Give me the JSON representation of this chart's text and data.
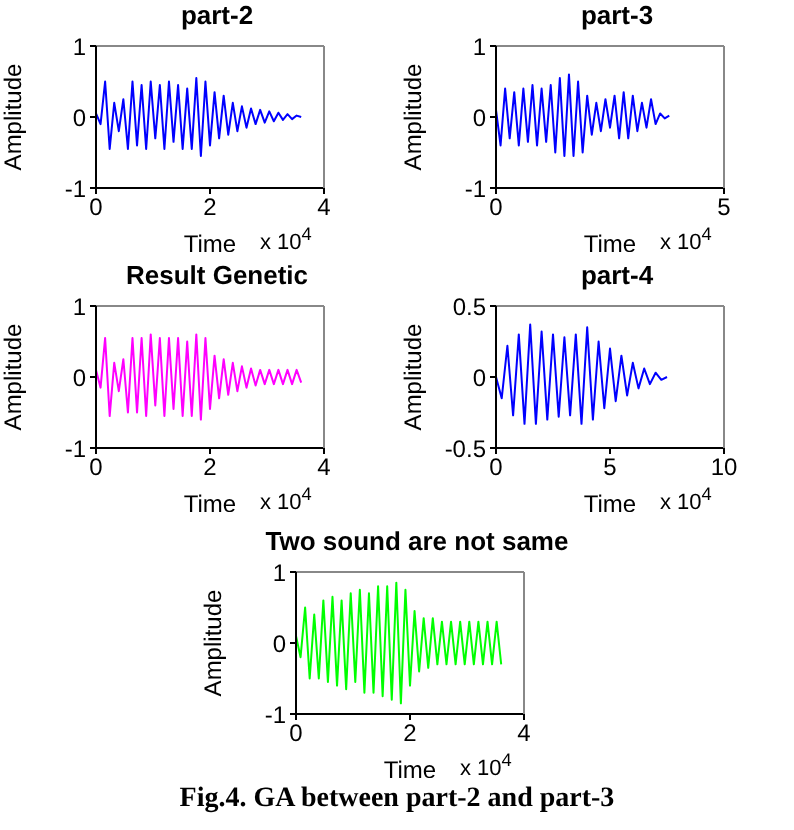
{
  "chart_data": [
    {
      "type": "line",
      "title": "part-2",
      "xlabel": "Time",
      "ylabel": "Amplitude",
      "annotations": [
        "x 10$^{4}$"
      ],
      "xlim": [
        0,
        4
      ],
      "xticks": [
        0,
        2,
        4
      ],
      "ylim": [
        -1,
        1
      ],
      "yticks": [
        -1,
        0,
        1
      ],
      "series": [
        {
          "color": "#0000ff",
          "x": [
            0,
            0.08,
            0.16,
            0.24,
            0.32,
            0.4,
            0.48,
            0.56,
            0.64,
            0.72,
            0.8,
            0.88,
            0.96,
            1.04,
            1.12,
            1.2,
            1.28,
            1.36,
            1.44,
            1.52,
            1.6,
            1.68,
            1.76,
            1.84,
            1.92,
            2,
            2.08,
            2.16,
            2.24,
            2.32,
            2.4,
            2.48,
            2.56,
            2.64,
            2.72,
            2.8,
            2.88,
            2.96,
            3.04,
            3.12,
            3.2,
            3.28,
            3.36,
            3.44,
            3.52,
            3.6
          ],
          "values": [
            0.05,
            -0.1,
            0.5,
            -0.45,
            0.2,
            -0.2,
            0.25,
            -0.45,
            0.5,
            -0.4,
            0.45,
            -0.45,
            0.5,
            -0.3,
            0.45,
            -0.45,
            0.5,
            -0.35,
            0.45,
            -0.45,
            0.4,
            -0.45,
            0.55,
            -0.55,
            0.5,
            -0.4,
            0.35,
            -0.3,
            0.3,
            -0.25,
            0.2,
            -0.2,
            0.15,
            -0.15,
            0.12,
            -0.1,
            0.1,
            -0.08,
            0.08,
            -0.06,
            0.06,
            -0.04,
            0.04,
            -0.03,
            0.02,
            0
          ]
        }
      ]
    },
    {
      "type": "line",
      "title": "part-3",
      "xlabel": "Time",
      "ylabel": "Amplitude",
      "annotations": [
        "x 10$^{4}$"
      ],
      "xlim": [
        0,
        5
      ],
      "xticks": [
        0,
        5
      ],
      "ylim": [
        -1,
        1
      ],
      "yticks": [
        -1,
        0,
        1
      ],
      "series": [
        {
          "color": "#0000ff",
          "x": [
            0,
            0.1,
            0.2,
            0.3,
            0.4,
            0.5,
            0.6,
            0.7,
            0.8,
            0.9,
            1,
            1.1,
            1.2,
            1.3,
            1.4,
            1.5,
            1.6,
            1.7,
            1.8,
            1.9,
            2,
            2.1,
            2.2,
            2.3,
            2.4,
            2.5,
            2.6,
            2.7,
            2.8,
            2.9,
            3,
            3.1,
            3.2,
            3.3,
            3.4,
            3.5,
            3.6,
            3.7,
            3.8
          ],
          "values": [
            0.1,
            -0.4,
            0.4,
            -0.3,
            0.35,
            -0.4,
            0.4,
            -0.35,
            0.45,
            -0.4,
            0.4,
            -0.35,
            0.45,
            -0.5,
            0.55,
            -0.55,
            0.6,
            -0.55,
            0.5,
            -0.5,
            0.3,
            -0.25,
            0.2,
            -0.2,
            0.25,
            -0.15,
            0.3,
            -0.3,
            0.35,
            -0.3,
            0.3,
            -0.2,
            0.2,
            -0.15,
            0.25,
            -0.1,
            0.05,
            -0.02,
            0.02
          ]
        }
      ]
    },
    {
      "type": "line",
      "title": "Result Genetic",
      "xlabel": "Time",
      "ylabel": "Amplitude",
      "annotations": [
        "x 10$^{4}$"
      ],
      "xlim": [
        0,
        4
      ],
      "xticks": [
        0,
        2,
        4
      ],
      "ylim": [
        -1,
        1
      ],
      "yticks": [
        -1,
        0,
        1
      ],
      "series": [
        {
          "color": "#ff00ff",
          "x": [
            0,
            0.08,
            0.16,
            0.24,
            0.32,
            0.4,
            0.48,
            0.56,
            0.64,
            0.72,
            0.8,
            0.88,
            0.96,
            1.04,
            1.12,
            1.2,
            1.28,
            1.36,
            1.44,
            1.52,
            1.6,
            1.68,
            1.76,
            1.84,
            1.92,
            2,
            2.08,
            2.16,
            2.24,
            2.32,
            2.4,
            2.48,
            2.56,
            2.64,
            2.72,
            2.8,
            2.88,
            2.96,
            3.04,
            3.12,
            3.2,
            3.28,
            3.36,
            3.44,
            3.52,
            3.6
          ],
          "values": [
            0.1,
            -0.15,
            0.55,
            -0.55,
            0.2,
            -0.2,
            0.25,
            -0.5,
            0.55,
            -0.5,
            0.55,
            -0.55,
            0.6,
            -0.4,
            0.55,
            -0.55,
            0.55,
            -0.45,
            0.55,
            -0.55,
            0.5,
            -0.55,
            0.6,
            -0.6,
            0.55,
            -0.45,
            0.3,
            -0.3,
            0.25,
            -0.25,
            0.2,
            -0.2,
            0.15,
            -0.15,
            0.12,
            -0.12,
            0.1,
            -0.1,
            0.1,
            -0.1,
            0.1,
            -0.1,
            0.1,
            -0.1,
            0.1,
            -0.08
          ]
        }
      ]
    },
    {
      "type": "line",
      "title": "part-4",
      "xlabel": "Time",
      "ylabel": "Amplitude",
      "annotations": [
        "x 10$^{4}$"
      ],
      "xlim": [
        0,
        10
      ],
      "xticks": [
        0,
        5,
        10
      ],
      "ylim": [
        -0.5,
        0.5
      ],
      "yticks": [
        -0.5,
        0,
        0.5
      ],
      "series": [
        {
          "color": "#0000ff",
          "x": [
            0,
            0.25,
            0.5,
            0.75,
            1,
            1.25,
            1.5,
            1.75,
            2,
            2.25,
            2.5,
            2.75,
            3,
            3.25,
            3.5,
            3.75,
            4,
            4.25,
            4.5,
            4.75,
            5,
            5.25,
            5.5,
            5.75,
            6,
            6.25,
            6.5,
            6.75,
            7,
            7.25,
            7.5
          ],
          "values": [
            0,
            -0.15,
            0.22,
            -0.27,
            0.3,
            -0.33,
            0.37,
            -0.33,
            0.32,
            -0.3,
            0.3,
            -0.28,
            0.28,
            -0.27,
            0.3,
            -0.33,
            0.35,
            -0.3,
            0.25,
            -0.22,
            0.2,
            -0.17,
            0.15,
            -0.13,
            0.1,
            -0.08,
            0.06,
            -0.05,
            0.03,
            -0.02,
            0
          ]
        }
      ]
    },
    {
      "type": "line",
      "title": "Two sound are not same",
      "xlabel": "Time",
      "ylabel": "Amplitude",
      "annotations": [
        "x 10$^{4}$",
        "Fig.4. GA between part-2 and part-3"
      ],
      "xlim": [
        0,
        4
      ],
      "xticks": [
        0,
        2,
        4
      ],
      "ylim": [
        -1,
        1
      ],
      "yticks": [
        -1,
        0,
        1
      ],
      "series": [
        {
          "color": "#00ff00",
          "x": [
            0,
            0.08,
            0.16,
            0.24,
            0.32,
            0.4,
            0.48,
            0.56,
            0.64,
            0.72,
            0.8,
            0.88,
            0.96,
            1.04,
            1.12,
            1.2,
            1.28,
            1.36,
            1.44,
            1.52,
            1.6,
            1.68,
            1.76,
            1.84,
            1.92,
            2,
            2.08,
            2.16,
            2.24,
            2.32,
            2.4,
            2.48,
            2.56,
            2.64,
            2.72,
            2.8,
            2.88,
            2.96,
            3.04,
            3.12,
            3.2,
            3.28,
            3.36,
            3.44,
            3.52,
            3.6
          ],
          "values": [
            0.1,
            -0.2,
            0.5,
            -0.5,
            0.4,
            -0.5,
            0.6,
            -0.55,
            0.65,
            -0.6,
            0.6,
            -0.65,
            0.7,
            -0.55,
            0.75,
            -0.7,
            0.7,
            -0.7,
            0.8,
            -0.75,
            0.8,
            -0.8,
            0.85,
            -0.85,
            0.75,
            -0.6,
            0.45,
            -0.4,
            0.35,
            -0.35,
            0.35,
            -0.3,
            0.3,
            -0.3,
            0.3,
            -0.3,
            0.3,
            -0.3,
            0.3,
            -0.3,
            0.3,
            -0.3,
            0.3,
            -0.3,
            0.3,
            -0.3
          ]
        }
      ]
    }
  ]
}
